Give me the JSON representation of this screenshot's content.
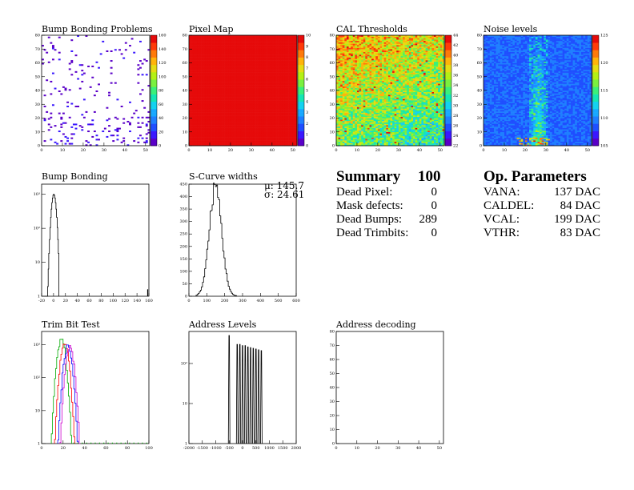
{
  "panels": {
    "bump_problems": {
      "title": "Bump Bonding Problems",
      "x_ticks": [
        "0",
        "10",
        "20",
        "30",
        "40",
        "50"
      ],
      "y_ticks": [
        "0",
        "10",
        "20",
        "30",
        "40",
        "50",
        "60",
        "70",
        "80"
      ],
      "z_ticks": [
        "0",
        "20",
        "40",
        "60",
        "80",
        "100",
        "120",
        "140",
        "160"
      ]
    },
    "pixel_map": {
      "title": "Pixel Map",
      "x_ticks": [
        "0",
        "10",
        "20",
        "30",
        "40",
        "50"
      ],
      "y_ticks": [
        "0",
        "10",
        "20",
        "30",
        "40",
        "50",
        "60",
        "70",
        "80"
      ],
      "z_ticks": [
        "0",
        "1",
        "2",
        "3",
        "4",
        "5",
        "6",
        "7",
        "8",
        "9",
        "10"
      ]
    },
    "cal_thresholds": {
      "title": "CAL Thresholds",
      "x_ticks": [
        "0",
        "10",
        "20",
        "30",
        "40",
        "50"
      ],
      "y_ticks": [
        "0",
        "10",
        "20",
        "30",
        "40",
        "50",
        "60",
        "70",
        "80"
      ],
      "z_ticks": [
        "22",
        "24",
        "26",
        "28",
        "30",
        "32",
        "34",
        "36",
        "38",
        "40",
        "42",
        "44"
      ]
    },
    "noise_levels": {
      "title": "Noise levels",
      "x_ticks": [
        "0",
        "10",
        "20",
        "30",
        "40",
        "50"
      ],
      "y_ticks": [
        "0",
        "10",
        "20",
        "30",
        "40",
        "50",
        "60",
        "70",
        "80"
      ],
      "z_ticks": [
        "105",
        "110",
        "115",
        "120",
        "125"
      ]
    },
    "bump_bonding": {
      "title": "Bump Bonding",
      "x_ticks": [
        "-20",
        "0",
        "20",
        "40",
        "60",
        "80",
        "100",
        "120",
        "140",
        "160"
      ],
      "y_ticks": [
        "1",
        "10",
        "10²",
        "10³"
      ]
    },
    "scurve": {
      "title": "S-Curve widths",
      "mu": "μ: 145.7",
      "sigma": "σ: 24.61",
      "x_ticks": [
        "0",
        "100",
        "200",
        "300",
        "400",
        "500",
        "600"
      ],
      "y_ticks": [
        "0",
        "50",
        "100",
        "150",
        "200",
        "250",
        "300",
        "350",
        "400",
        "450"
      ]
    },
    "trim_bit": {
      "title": "Trim Bit Test",
      "x_ticks": [
        "0",
        "20",
        "40",
        "60",
        "80",
        "100"
      ],
      "y_ticks": [
        "1",
        "10",
        "10²",
        "10³"
      ]
    },
    "address_levels": {
      "title": "Address Levels",
      "x_ticks": [
        "-2000",
        "-1500",
        "-1000",
        "-500",
        "0",
        "500",
        "1000",
        "1500",
        "2000"
      ],
      "y_ticks": [
        "1",
        "10",
        "10²"
      ]
    },
    "address_decoding": {
      "title": "Address decoding",
      "x_ticks": [
        "0",
        "10",
        "20",
        "30",
        "40",
        "50"
      ],
      "y_ticks": [
        "0",
        "10",
        "20",
        "30",
        "40",
        "50",
        "60",
        "70",
        "80"
      ]
    }
  },
  "summary": {
    "title": "Summary",
    "total": "100",
    "rows": [
      {
        "label": "Dead Pixel:",
        "value": "0"
      },
      {
        "label": "Mask defects:",
        "value": "0"
      },
      {
        "label": "Dead Bumps:",
        "value": "289"
      },
      {
        "label": "Dead Trimbits:",
        "value": "0"
      }
    ]
  },
  "op_params": {
    "title": "Op. Parameters",
    "rows": [
      {
        "label": "VANA:",
        "value": "137 DAC"
      },
      {
        "label": "CALDEL:",
        "value": "84 DAC"
      },
      {
        "label": "VCAL:",
        "value": "199 DAC"
      },
      {
        "label": "VTHR:",
        "value": "83 DAC"
      }
    ]
  },
  "chart_data": [
    {
      "type": "heatmap",
      "title": "Bump Bonding Problems",
      "xlim": [
        0,
        52
      ],
      "ylim": [
        0,
        80
      ],
      "zlim": [
        0,
        160
      ],
      "note": "sparse purple dots, denser near bottom"
    },
    {
      "type": "heatmap",
      "title": "Pixel Map",
      "xlim": [
        0,
        52
      ],
      "ylim": [
        0,
        80
      ],
      "zlim": [
        0,
        10
      ],
      "uniform_value": 10
    },
    {
      "type": "heatmap",
      "title": "CAL Thresholds",
      "xlim": [
        0,
        52
      ],
      "ylim": [
        0,
        80
      ],
      "zlim": [
        22,
        44
      ]
    },
    {
      "type": "heatmap",
      "title": "Noise levels",
      "xlim": [
        0,
        52
      ],
      "ylim": [
        0,
        80
      ],
      "zlim": [
        100,
        129
      ]
    },
    {
      "type": "line",
      "title": "Bump Bonding",
      "xlim": [
        -20,
        160
      ],
      "log_y": true,
      "peak_x": 0,
      "peak_y": 1000
    },
    {
      "type": "line",
      "title": "S-Curve widths",
      "xlim": [
        0,
        600
      ],
      "ylim": [
        0,
        450
      ],
      "mean": 145.7,
      "sigma": 24.61,
      "peak_y": 440
    },
    {
      "type": "line",
      "title": "Trim Bit Test",
      "xlim": [
        0,
        100
      ],
      "log_y": true,
      "series": [
        {
          "color": "#00aa00",
          "peak_x": 18,
          "peak_y": 1500
        },
        {
          "color": "#ff0000",
          "peak_x": 21,
          "peak_y": 1100
        },
        {
          "color": "#0000ff",
          "peak_x": 24,
          "peak_y": 900
        },
        {
          "color": "#cc00cc",
          "peak_x": 26,
          "peak_y": 800
        }
      ]
    },
    {
      "type": "bar",
      "title": "Address Levels",
      "xlim": [
        -2000,
        2000
      ],
      "log_y": true,
      "x": [
        -500,
        -200,
        -100,
        0,
        100,
        200,
        300,
        400,
        500,
        600,
        700
      ],
      "values": [
        500,
        300,
        300,
        280,
        280,
        260,
        250,
        240,
        230,
        220,
        210
      ]
    },
    {
      "type": "scatter",
      "title": "Address decoding",
      "xlim": [
        0,
        52
      ],
      "ylim": [
        0,
        80
      ],
      "values": []
    }
  ]
}
